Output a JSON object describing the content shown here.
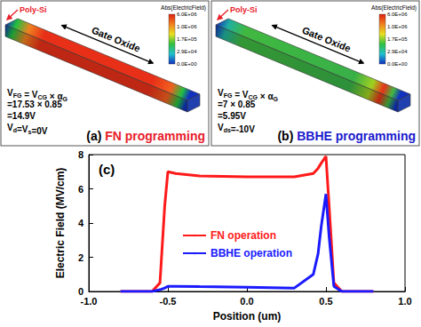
{
  "panels": [
    {
      "tag": "(a)",
      "caption": "FN programming",
      "caption_color": "#e8202a",
      "poly_label": "Poly-Si",
      "oxide_label": "Gate Oxide",
      "colorbar_title": "Abs(ElectricField)",
      "colorbar_labels": [
        "6.0E+06",
        "1.0E+06",
        "1.7E+05",
        "2.9E+04",
        "0.0E+00"
      ],
      "formula_lines": [
        [
          {
            "text": "V"
          },
          {
            "text": "FG",
            "sub": true
          },
          {
            "text": " = V"
          },
          {
            "text": "CG",
            "sub": true
          },
          {
            "text": " × α"
          },
          {
            "text": "G",
            "sub": true
          }
        ],
        [
          {
            "text": "=17.53 × 0.85"
          }
        ],
        [
          {
            "text": "=14.9V"
          }
        ],
        [
          {
            "text": "V"
          },
          {
            "text": "d",
            "sub": true
          },
          {
            "text": "=V"
          },
          {
            "text": "s",
            "sub": true
          },
          {
            "text": "=0V"
          }
        ]
      ]
    },
    {
      "tag": "(b)",
      "caption": "BBHE programming",
      "caption_color": "#1a1acc",
      "poly_label": "Poly-Si",
      "oxide_label": "Gate Oxide",
      "colorbar_title": "Abs(ElectricField)",
      "colorbar_labels": [
        "6.0E+06",
        "1.0E+06",
        "1.7E+05",
        "2.9E+04",
        "0.0E+00"
      ],
      "formula_lines": [
        [
          {
            "text": "V"
          },
          {
            "text": "FG",
            "sub": true
          },
          {
            "text": " = V"
          },
          {
            "text": "CG",
            "sub": true
          },
          {
            "text": " × α"
          },
          {
            "text": "G",
            "sub": true
          }
        ],
        [
          {
            "text": "=7 × 0.85"
          }
        ],
        [
          {
            "text": "=5.95V"
          }
        ],
        [
          {
            "text": "V"
          },
          {
            "text": "ds",
            "sub": true
          },
          {
            "text": "=-10V"
          }
        ]
      ]
    }
  ],
  "chart_data": {
    "type": "line",
    "title": "(c)",
    "x_label": "Position (um)",
    "y_label": "Electric Field (MV/cm)",
    "xlim": [
      -1,
      1
    ],
    "xticks": [
      {
        "value": -1,
        "label": "-1.0"
      },
      {
        "value": -0.5,
        "label": "-0.5"
      },
      {
        "value": 0,
        "label": "0.0"
      },
      {
        "value": 0.5,
        "label": "0.5"
      },
      {
        "value": 1,
        "label": "1.0"
      }
    ],
    "ylim": [
      0,
      8
    ],
    "yticks": [
      0,
      2,
      4,
      6,
      8
    ],
    "grid": false,
    "legend": "center-left",
    "x": [
      -0.8,
      -0.6,
      -0.55,
      -0.52,
      -0.5,
      -0.45,
      -0.3,
      0,
      0.3,
      0.42,
      0.45,
      0.47,
      0.5,
      0.52,
      0.55,
      0.6,
      0.8
    ],
    "series": [
      {
        "name": "FN operation",
        "color": "#ff1a1a",
        "values": [
          0,
          0,
          0.5,
          5,
          7,
          6.9,
          6.75,
          6.7,
          6.7,
          6.9,
          7.2,
          7.5,
          7.9,
          5,
          0.5,
          0,
          0
        ]
      },
      {
        "name": "BBHE operation",
        "color": "#1a1aff",
        "values": [
          0,
          0,
          0.1,
          0.2,
          0.3,
          0.3,
          0.28,
          0.25,
          0.2,
          1,
          2.2,
          3.8,
          5.7,
          3.2,
          0.3,
          0,
          0
        ]
      }
    ]
  }
}
